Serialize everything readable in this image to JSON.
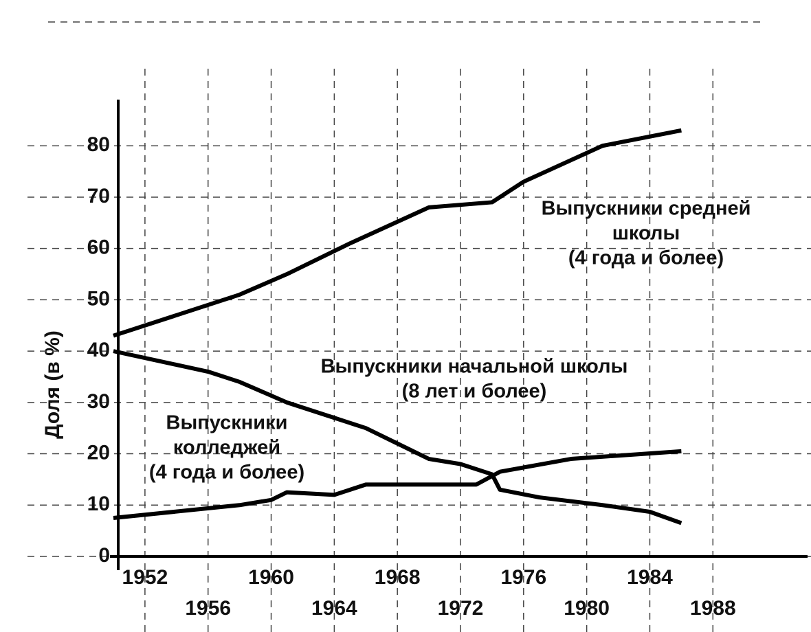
{
  "chart_data": {
    "type": "line",
    "y_label": "Доля (в %)",
    "xlim": [
      1950,
      1994
    ],
    "ylim": [
      0,
      89
    ],
    "xticks": [
      1952,
      1956,
      1960,
      1964,
      1968,
      1972,
      1976,
      1980,
      1984,
      1988
    ],
    "yticks": [
      0,
      10,
      20,
      30,
      40,
      50,
      60,
      70,
      80
    ],
    "grid": true,
    "series": [
      {
        "label_lines": [
          "Выпускники средней",
          "школы",
          "(4 года и более)"
        ],
        "color": "#000000",
        "x": [
          1950,
          1958,
          1961,
          1965,
          1970,
          1974,
          1976,
          1981,
          1986
        ],
        "values": [
          43,
          51,
          55,
          61,
          68,
          69,
          73,
          80,
          83
        ]
      },
      {
        "label_lines": [
          "Выпускники начальной школы",
          "(8 лет и более)"
        ],
        "color": "#000000",
        "x": [
          1950,
          1956,
          1958,
          1961,
          1964,
          1966,
          1968,
          1970,
          1972,
          1974,
          1974.5,
          1977,
          1981,
          1984,
          1986
        ],
        "values": [
          40,
          36,
          34,
          30,
          27,
          25,
          22,
          19,
          18,
          16,
          13,
          11.5,
          10,
          8.7,
          6.5
        ]
      },
      {
        "label_lines": [
          "Выпускники",
          "колледжей",
          "(4 года и более)"
        ],
        "color": "#000000",
        "x": [
          1950,
          1958,
          1960,
          1961,
          1964,
          1966,
          1970,
          1973,
          1974.5,
          1979,
          1986
        ],
        "values": [
          7.5,
          10,
          11,
          12.5,
          12,
          14,
          14,
          14,
          16.5,
          19,
          20.5
        ]
      }
    ]
  }
}
